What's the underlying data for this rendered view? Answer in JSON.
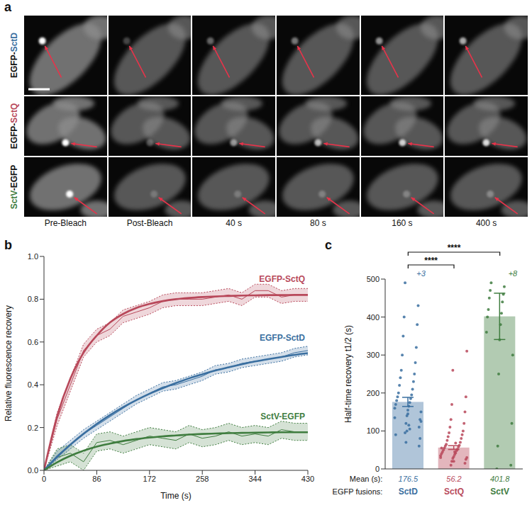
{
  "panel_a": {
    "letter": "a",
    "rows": [
      {
        "label": "EGFP-SctD",
        "color": "#3a6fa0"
      },
      {
        "label": "EGFP-SctQ",
        "color": "#b8485a"
      },
      {
        "label": "SctV-EGFP",
        "color": "#3f7d3f"
      }
    ],
    "columns": [
      "Pre-Bleach",
      "Post-Bleach",
      "40 s",
      "80 s",
      "160 s",
      "400 s"
    ]
  },
  "chart_data": [
    {
      "type": "line",
      "letter": "b",
      "x_label": "Time (s)",
      "y_label": "Relative fluorescence recovery",
      "x": [
        0,
        21.5,
        43,
        64.5,
        86,
        107.5,
        129,
        150.5,
        172,
        193.5,
        215,
        236.5,
        258,
        279.5,
        301,
        322.5,
        344,
        365.5,
        387,
        408.5,
        430
      ],
      "xlim": [
        0,
        430
      ],
      "xticks": [
        0,
        86,
        172,
        258,
        344,
        430
      ],
      "ylim": [
        0,
        1
      ],
      "yticks": [
        {
          "value": 0,
          "label": "0.0"
        },
        {
          "value": 0.2,
          "label": "0.2"
        },
        {
          "value": 0.4,
          "label": "0.4"
        },
        {
          "value": 0.6,
          "label": "0.6"
        },
        {
          "value": 0.8,
          "label": "0.8"
        },
        {
          "value": 1,
          "label": "1.0"
        }
      ],
      "series": [
        {
          "name": "EGFP-SctQ",
          "color": "#b8485a",
          "values": [
            0,
            0.24,
            0.4,
            0.56,
            0.63,
            0.66,
            0.72,
            0.74,
            0.76,
            0.79,
            0.8,
            0.8,
            0.8,
            0.81,
            0.82,
            0.8,
            0.84,
            0.84,
            0.81,
            0.82,
            0.82
          ],
          "fit": [
            0,
            0.254,
            0.429,
            0.55,
            0.63,
            0.691,
            0.731,
            0.759,
            0.778,
            0.791,
            0.8,
            0.806,
            0.81,
            0.813,
            0.815,
            0.817,
            0.818,
            0.819,
            0.819,
            0.82,
            0.82
          ],
          "lower": [
            0,
            0.21,
            0.37,
            0.53,
            0.6,
            0.63,
            0.69,
            0.71,
            0.73,
            0.76,
            0.77,
            0.77,
            0.77,
            0.78,
            0.79,
            0.77,
            0.81,
            0.81,
            0.78,
            0.79,
            0.79
          ],
          "upper": [
            0,
            0.27,
            0.43,
            0.59,
            0.66,
            0.69,
            0.75,
            0.77,
            0.79,
            0.82,
            0.83,
            0.83,
            0.83,
            0.84,
            0.85,
            0.83,
            0.87,
            0.87,
            0.84,
            0.85,
            0.85
          ]
        },
        {
          "name": "EGFP-SctD",
          "color": "#3a6fa0",
          "values": [
            0,
            0.07,
            0.12,
            0.17,
            0.21,
            0.25,
            0.29,
            0.33,
            0.36,
            0.39,
            0.4,
            0.42,
            0.44,
            0.47,
            0.48,
            0.5,
            0.51,
            0.52,
            0.53,
            0.55,
            0.56
          ],
          "fit": [
            0,
            0.063,
            0.12,
            0.171,
            0.217,
            0.258,
            0.295,
            0.328,
            0.358,
            0.384,
            0.408,
            0.43,
            0.449,
            0.467,
            0.482,
            0.496,
            0.509,
            0.52,
            0.53,
            0.54,
            0.548
          ],
          "lower": [
            0,
            0.05,
            0.1,
            0.15,
            0.19,
            0.23,
            0.27,
            0.31,
            0.34,
            0.37,
            0.38,
            0.4,
            0.42,
            0.45,
            0.46,
            0.48,
            0.49,
            0.5,
            0.51,
            0.53,
            0.54
          ],
          "upper": [
            0,
            0.09,
            0.14,
            0.19,
            0.23,
            0.27,
            0.31,
            0.35,
            0.38,
            0.41,
            0.42,
            0.44,
            0.46,
            0.49,
            0.5,
            0.52,
            0.53,
            0.54,
            0.55,
            0.57,
            0.58
          ]
        },
        {
          "name": "SctV-EGFP",
          "color": "#3f7d3f",
          "values": [
            0,
            0.06,
            0.08,
            0.04,
            0.13,
            0.14,
            0.12,
            0.14,
            0.16,
            0.15,
            0.14,
            0.17,
            0.15,
            0.16,
            0.18,
            0.16,
            0.17,
            0.16,
            0.19,
            0.18,
            0.18
          ],
          "fit": [
            0,
            0.038,
            0.068,
            0.092,
            0.111,
            0.125,
            0.137,
            0.146,
            0.153,
            0.159,
            0.163,
            0.167,
            0.17,
            0.172,
            0.174,
            0.175,
            0.176,
            0.177,
            0.178,
            0.178,
            0.178
          ],
          "lower": [
            0,
            0.02,
            0.04,
            0,
            0.09,
            0.1,
            0.08,
            0.1,
            0.12,
            0.11,
            0.1,
            0.13,
            0.11,
            0.12,
            0.14,
            0.12,
            0.13,
            0.12,
            0.15,
            0.14,
            0.14
          ],
          "upper": [
            0,
            0.1,
            0.12,
            0.08,
            0.17,
            0.18,
            0.16,
            0.18,
            0.2,
            0.19,
            0.18,
            0.21,
            0.19,
            0.2,
            0.22,
            0.2,
            0.21,
            0.2,
            0.23,
            0.22,
            0.22
          ]
        }
      ]
    },
    {
      "type": "bar",
      "letter": "c",
      "y_label": "Half-time recovery t1/2 (s)",
      "categories": [
        "SctD",
        "SctQ",
        "SctV"
      ],
      "values": [
        176.5,
        56.2,
        401.8
      ],
      "errors": [
        12,
        5,
        61
      ],
      "colors": [
        "#3a6fa0",
        "#b8485a",
        "#3f7d3f"
      ],
      "data_labels": true,
      "row_labels": {
        "values": "Mean (s):",
        "categories": "EGFP fusions:"
      },
      "points": [
        [
          95,
          110,
          120,
          130,
          140,
          150,
          155,
          160,
          165,
          170,
          175,
          180,
          185,
          190,
          195,
          200,
          210,
          220,
          230,
          240,
          250,
          260,
          280,
          300,
          320,
          350,
          380,
          400,
          430,
          490,
          60,
          70,
          80,
          100,
          125,
          145,
          135,
          115,
          90,
          105
        ],
        [
          10,
          15,
          20,
          25,
          28,
          30,
          32,
          35,
          38,
          40,
          42,
          45,
          48,
          50,
          52,
          55,
          58,
          60,
          62,
          65,
          70,
          75,
          80,
          85,
          90,
          95,
          100,
          110,
          120,
          130,
          150,
          170,
          190,
          260,
          310,
          20,
          30,
          45,
          55,
          68
        ],
        [
          0,
          10,
          60,
          120,
          250,
          300,
          340,
          360,
          380,
          400,
          410,
          420,
          440,
          450,
          460,
          470,
          480,
          490
        ]
      ],
      "above_range": [
        {
          "value": 3,
          "label": "+3"
        },
        null,
        {
          "value": 8,
          "label": "+8"
        }
      ],
      "comparisons": [
        {
          "pair": [
            0,
            1
          ],
          "label": "****"
        },
        {
          "pair": [
            0,
            2
          ],
          "label": "****"
        }
      ],
      "ylim": [
        0,
        500
      ],
      "yticks": [
        0,
        100,
        200,
        300,
        400,
        500
      ]
    }
  ]
}
